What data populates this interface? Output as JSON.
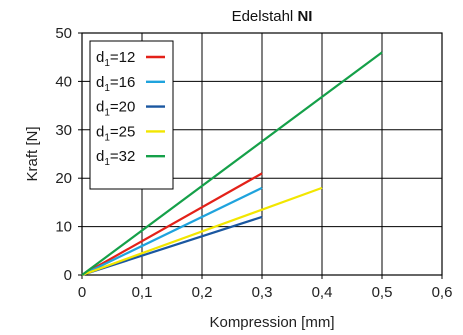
{
  "chart_data": {
    "type": "line",
    "title": "Edelstahl",
    "title_bold": "NI",
    "xlabel": "Kompression [mm]",
    "ylabel": "Kraft [N]",
    "xlim": [
      0,
      0.6
    ],
    "ylim": [
      0,
      50
    ],
    "x_ticks": [
      "0",
      "0,1",
      "0,2",
      "0,3",
      "0,4",
      "0,5",
      "0,6"
    ],
    "y_ticks": [
      "0",
      "10",
      "20",
      "30",
      "40",
      "50"
    ],
    "grid": true,
    "legend_position": "top-left",
    "legend_prefix": "d",
    "legend_subscript": "1",
    "series": [
      {
        "name": "=12",
        "color": "#e32119",
        "x": [
          0,
          0.3
        ],
        "y": [
          0,
          21
        ]
      },
      {
        "name": "=16",
        "color": "#1fa3dd",
        "x": [
          0,
          0.3
        ],
        "y": [
          0,
          18
        ]
      },
      {
        "name": "=20",
        "color": "#1a57a0",
        "x": [
          0,
          0.3
        ],
        "y": [
          0,
          12
        ]
      },
      {
        "name": "=25",
        "color": "#f2e600",
        "x": [
          0,
          0.4
        ],
        "y": [
          0,
          18
        ]
      },
      {
        "name": "=32",
        "color": "#15a049",
        "x": [
          0,
          0.5
        ],
        "y": [
          0,
          46
        ]
      }
    ]
  }
}
